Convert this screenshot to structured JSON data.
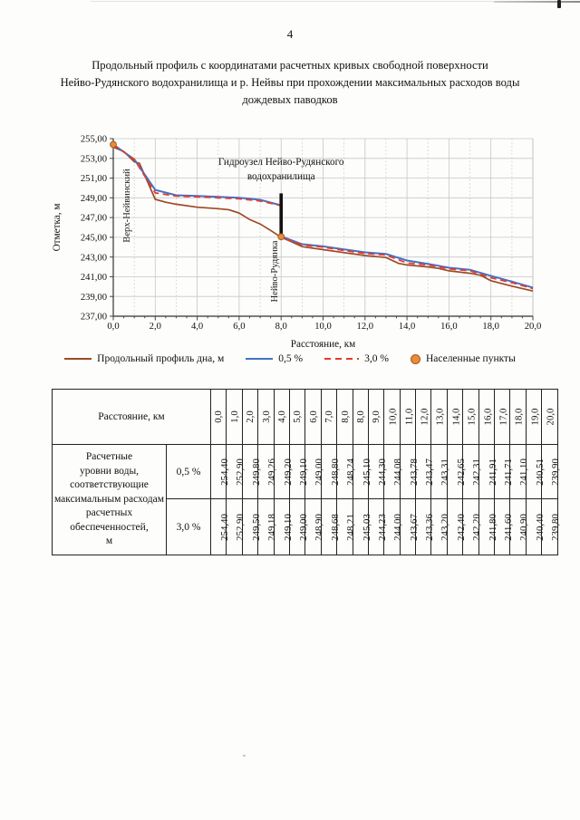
{
  "page": {
    "number": "4",
    "title_lines": [
      "Продольный профиль с координатами расчетных кривых свободной поверхности",
      "Нейво-Рудянского водохранилища и р. Нейвы при прохождении максимальных расходов воды",
      "дождевых паводков"
    ]
  },
  "chart_data": {
    "type": "line",
    "xlabel": "Расстояние, км",
    "ylabel": "Отметка, м",
    "xlim": [
      0,
      20
    ],
    "ylim": [
      237,
      255
    ],
    "x_ticks": [
      "0,0",
      "2,0",
      "4,0",
      "6,0",
      "8,0",
      "10,0",
      "12,0",
      "14,0",
      "16,0",
      "18,0",
      "20,0"
    ],
    "y_ticks": [
      "237,00",
      "239,00",
      "241,00",
      "243,00",
      "245,00",
      "247,00",
      "249,00",
      "251,00",
      "253,00",
      "255,00"
    ],
    "grid": "on",
    "legend_position": "bottom",
    "series": [
      {
        "name": "Продольный профиль дна, м",
        "color": "#9D4A24",
        "style": "solid",
        "points": [
          [
            0,
            254.15
          ],
          [
            0.5,
            253.7
          ],
          [
            1,
            252.65
          ],
          [
            1.25,
            252.5
          ],
          [
            2,
            248.85
          ],
          [
            2.5,
            248.55
          ],
          [
            3,
            248.35
          ],
          [
            4,
            248.05
          ],
          [
            5,
            247.9
          ],
          [
            5.5,
            247.8
          ],
          [
            6,
            247.45
          ],
          [
            6.5,
            246.8
          ],
          [
            7,
            246.35
          ],
          [
            7.5,
            245.7
          ],
          [
            8,
            245.0
          ],
          [
            8.5,
            244.55
          ],
          [
            9,
            244.05
          ],
          [
            10,
            243.75
          ],
          [
            11,
            243.45
          ],
          [
            12,
            243.15
          ],
          [
            13,
            242.95
          ],
          [
            13.6,
            242.35
          ],
          [
            14,
            242.2
          ],
          [
            15,
            242.0
          ],
          [
            15.5,
            241.85
          ],
          [
            16,
            241.6
          ],
          [
            17,
            241.35
          ],
          [
            17.5,
            241.15
          ],
          [
            18,
            240.6
          ],
          [
            19,
            240.05
          ],
          [
            20,
            239.55
          ]
        ]
      },
      {
        "name": "0,5 %",
        "color": "#4472C4",
        "style": "solid",
        "points": [
          [
            0,
            254.4
          ],
          [
            1,
            252.9
          ],
          [
            2,
            249.8
          ],
          [
            3,
            249.26
          ],
          [
            4,
            249.2
          ],
          [
            5,
            249.1
          ],
          [
            6,
            249.0
          ],
          [
            7,
            248.8
          ],
          [
            8,
            248.24
          ],
          [
            8,
            245.1
          ],
          [
            9,
            244.3
          ],
          [
            10,
            244.08
          ],
          [
            11,
            243.78
          ],
          [
            12,
            243.47
          ],
          [
            13,
            243.31
          ],
          [
            14,
            242.65
          ],
          [
            15,
            242.31
          ],
          [
            16,
            241.91
          ],
          [
            17,
            241.71
          ],
          [
            18,
            241.1
          ],
          [
            19,
            240.51
          ],
          [
            20,
            239.9
          ]
        ]
      },
      {
        "name": "3,0 %",
        "color": "#E23B33",
        "style": "dashed",
        "points": [
          [
            0,
            254.4
          ],
          [
            1,
            252.9
          ],
          [
            2,
            249.5
          ],
          [
            3,
            249.18
          ],
          [
            4,
            249.1
          ],
          [
            5,
            249.0
          ],
          [
            6,
            248.9
          ],
          [
            7,
            248.68
          ],
          [
            8,
            248.21
          ],
          [
            8,
            245.03
          ],
          [
            9,
            244.23
          ],
          [
            10,
            244.0
          ],
          [
            11,
            243.67
          ],
          [
            12,
            243.36
          ],
          [
            13,
            243.2
          ],
          [
            14,
            242.4
          ],
          [
            15,
            242.2
          ],
          [
            16,
            241.8
          ],
          [
            17,
            241.6
          ],
          [
            18,
            240.9
          ],
          [
            19,
            240.4
          ],
          [
            20,
            239.8
          ]
        ]
      }
    ],
    "markers": {
      "name": "Населенные пункты",
      "fill": "#E98A3C",
      "stroke": "#A25B17",
      "points": [
        {
          "x": 0,
          "y": 254.4,
          "label": "Верх-Нейвинский",
          "label_x": 0.78,
          "label_y": 248.2
        },
        {
          "x": 8,
          "y": 245.05,
          "label": "Нейво-Рудянка",
          "label_x": 7.82,
          "label_y": 241.55
        }
      ]
    },
    "dam": {
      "x": 8,
      "y_bottom": 245.0,
      "y_top": 249.45,
      "label_lines": [
        "Гидроузел Нейво-Рудянского",
        "водохранилища"
      ],
      "label_y": 252.35
    }
  },
  "table": {
    "distance_header": "Расстояние, км",
    "distances": [
      "0,0",
      "1,0",
      "2,0",
      "3,0",
      "4,0",
      "5,0",
      "6,0",
      "7,0",
      "8,0",
      "8,0",
      "9,0",
      "10,0",
      "11,0",
      "12,0",
      "13,0",
      "14,0",
      "15,0",
      "16,0",
      "17,0",
      "18,0",
      "19,0",
      "20,0"
    ],
    "levels_label": "Расчетные\nуровни воды,\nсоответствующие\nмаксимальным расходам\nрасчетных\nобеспеченностей,\nм",
    "rows": [
      {
        "label": "0,5 %",
        "values": [
          "254,40",
          "252,90",
          "249,80",
          "249,26",
          "249,20",
          "249,10",
          "249,00",
          "248,80",
          "248,24",
          "245,10",
          "244,30",
          "244,08",
          "243,78",
          "243,47",
          "243,31",
          "242,65",
          "242,31",
          "241,91",
          "241,71",
          "241,10",
          "240,51",
          "239,90"
        ]
      },
      {
        "label": "3,0 %",
        "values": [
          "254,40",
          "252,90",
          "249,50",
          "249,18",
          "249,10",
          "249,00",
          "248,90",
          "248,68",
          "248,21",
          "245,03",
          "244,23",
          "244,00",
          "243,67",
          "243,36",
          "243,20",
          "242,40",
          "242,20",
          "241,80",
          "241,60",
          "240,90",
          "240,40",
          "239,80"
        ]
      }
    ]
  }
}
